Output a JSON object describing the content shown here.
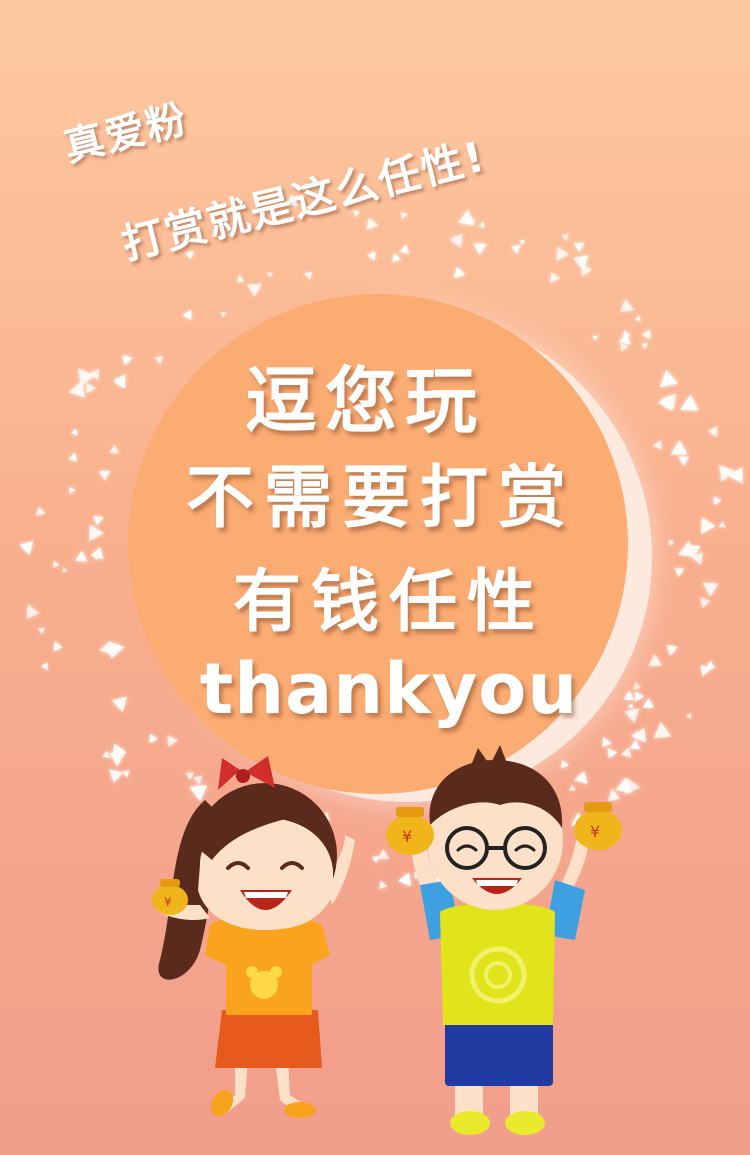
{
  "slogan": {
    "line1": "真爱粉",
    "line2": "打赏就是这么任性!"
  },
  "main_text": {
    "line1": "逗您玩",
    "line2": "不需要打赏",
    "line3": "有钱任性",
    "line4": "thankyou"
  },
  "colors": {
    "background_top": "#fdc9a0",
    "background_bottom": "#f19d8c",
    "circle": "#fbac73",
    "text": "#ffffff"
  },
  "money_bag_glyph": "¥"
}
